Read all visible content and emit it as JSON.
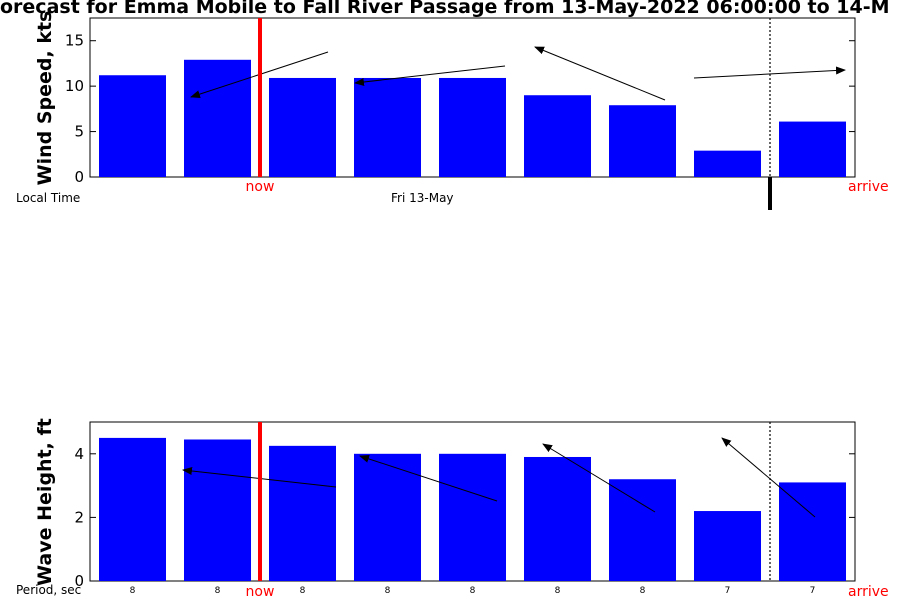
{
  "title": "orecast for Emma Mobile to Fall River Passage from 13-May-2022 06:00:00 to 14-M",
  "colors": {
    "bar": "#0000ff",
    "now_line": "#ff0000",
    "marker_text": "#ff0000"
  },
  "markers": {
    "now": "now",
    "arrive": "arrive"
  },
  "row_labels": {
    "local_time": "Local Time",
    "period": "Period, sec"
  },
  "day_label": "Fri 13-May",
  "chart_data": [
    {
      "type": "bar",
      "ylabel": "Wind Speed, kts",
      "ylim": [
        0,
        17.5
      ],
      "yticks": [
        0,
        5,
        10,
        15
      ],
      "values": [
        11.2,
        12.9,
        10.9,
        10.9,
        10.9,
        9.0,
        7.9,
        2.9,
        6.1
      ],
      "direction_arrows": true,
      "now_index": 1.5,
      "arrive_index": 7.5
    },
    {
      "type": "bar",
      "ylabel": "Wave Height, ft",
      "ylim": [
        0,
        5
      ],
      "yticks": [
        0,
        2,
        4
      ],
      "values": [
        4.5,
        4.45,
        4.25,
        4.0,
        4.0,
        3.9,
        3.2,
        2.2,
        3.1
      ],
      "periods": [
        "8",
        "8",
        "8",
        "8",
        "8",
        "8",
        "8",
        "7",
        "7"
      ],
      "direction_arrows": true,
      "now_index": 1.5,
      "arrive_index": 7.5
    }
  ]
}
